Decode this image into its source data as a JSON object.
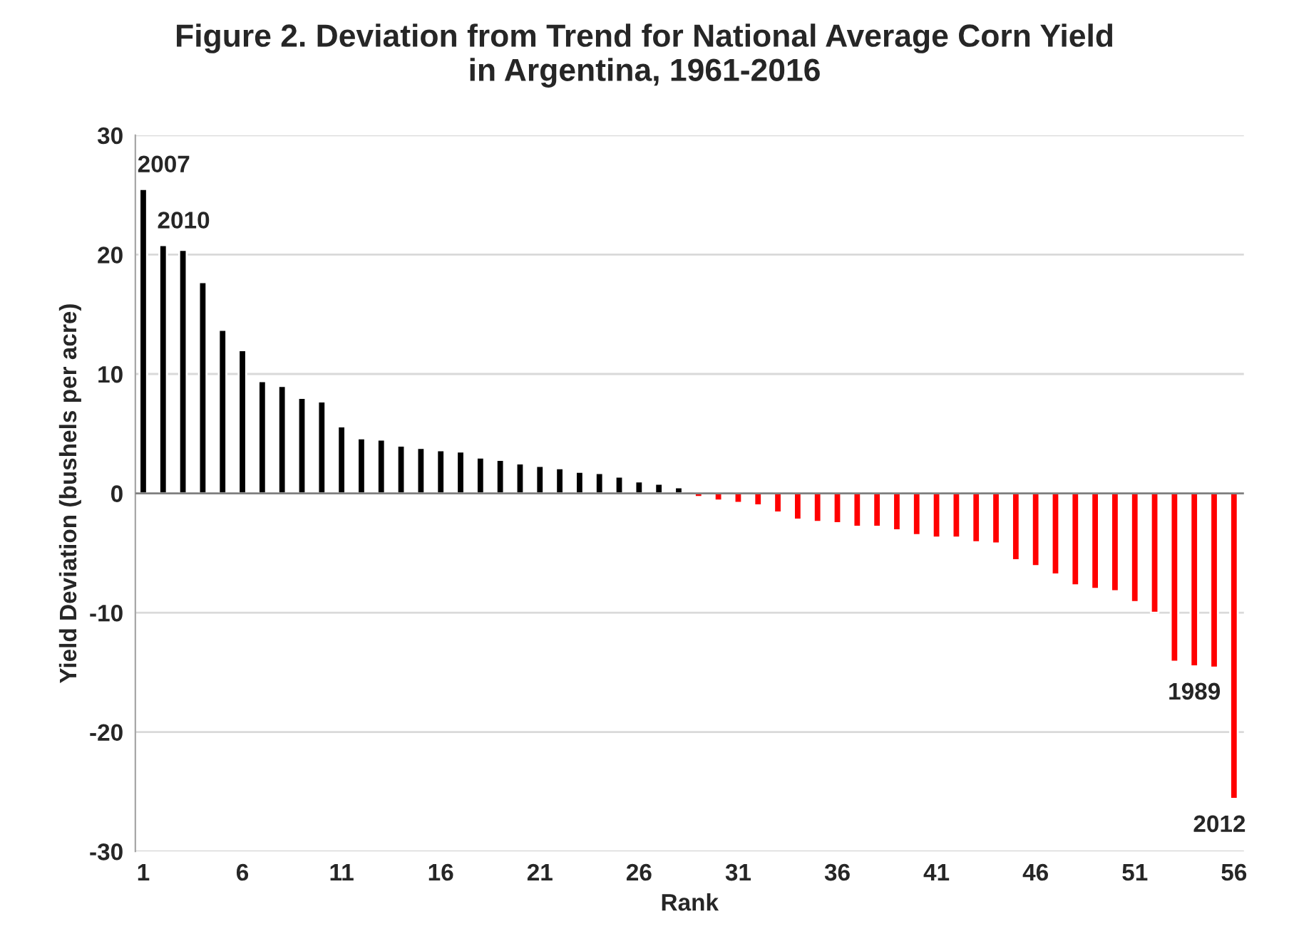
{
  "chart_data": {
    "type": "bar",
    "title": "Figure 2. Deviation from Trend for National Average Corn Yield\nin Argentina, 1961-2016",
    "xlabel": "Rank",
    "ylabel": "Yield Deviation (bushels per acre)",
    "x": [
      1,
      2,
      3,
      4,
      5,
      6,
      7,
      8,
      9,
      10,
      11,
      12,
      13,
      14,
      15,
      16,
      17,
      18,
      19,
      20,
      21,
      22,
      23,
      24,
      25,
      26,
      27,
      28,
      29,
      30,
      31,
      32,
      33,
      34,
      35,
      36,
      37,
      38,
      39,
      40,
      41,
      42,
      43,
      44,
      45,
      46,
      47,
      48,
      49,
      50,
      51,
      52,
      53,
      54,
      55,
      56
    ],
    "values": [
      25.5,
      20.8,
      20.4,
      17.7,
      13.7,
      12.0,
      9.4,
      9.0,
      8.0,
      7.7,
      5.6,
      4.6,
      4.5,
      4.0,
      3.8,
      3.6,
      3.5,
      3.0,
      2.8,
      2.5,
      2.3,
      2.1,
      1.8,
      1.7,
      1.4,
      1.0,
      0.8,
      0.5,
      -0.3,
      -0.6,
      -0.8,
      -1.0,
      -1.6,
      -2.2,
      -2.4,
      -2.5,
      -2.8,
      -2.8,
      -3.1,
      -3.5,
      -3.7,
      -3.7,
      -4.1,
      -4.2,
      -5.6,
      -6.1,
      -6.8,
      -7.7,
      -8.0,
      -8.2,
      -9.1,
      -10.0,
      -14.1,
      -14.5,
      -14.6,
      -25.6
    ],
    "colors": [
      "#000000",
      "#000000",
      "#000000",
      "#000000",
      "#000000",
      "#000000",
      "#000000",
      "#000000",
      "#000000",
      "#000000",
      "#000000",
      "#000000",
      "#000000",
      "#000000",
      "#000000",
      "#000000",
      "#000000",
      "#000000",
      "#000000",
      "#000000",
      "#000000",
      "#000000",
      "#000000",
      "#000000",
      "#000000",
      "#000000",
      "#000000",
      "#000000",
      "#ff0000",
      "#ff0000",
      "#ff0000",
      "#ff0000",
      "#ff0000",
      "#ff0000",
      "#ff0000",
      "#ff0000",
      "#ff0000",
      "#ff0000",
      "#ff0000",
      "#ff0000",
      "#ff0000",
      "#ff0000",
      "#ff0000",
      "#ff0000",
      "#ff0000",
      "#ff0000",
      "#ff0000",
      "#ff0000",
      "#ff0000",
      "#ff0000",
      "#ff0000",
      "#ff0000",
      "#ff0000",
      "#ff0000",
      "#ff0000",
      "#ff0000"
    ],
    "xlim": [
      0.6,
      56.5
    ],
    "xticks": [
      1,
      6,
      11,
      16,
      21,
      26,
      31,
      36,
      41,
      46,
      51,
      56
    ],
    "ylim": [
      -30,
      30
    ],
    "yticks": [
      -30,
      -20,
      -10,
      0,
      10,
      20,
      30
    ],
    "grid": "y",
    "annotations": [
      {
        "text": "2007",
        "x": 1,
        "y": 25.5
      },
      {
        "text": "2010",
        "x": 2,
        "y": 20.8
      },
      {
        "text": "1989",
        "x": 54,
        "y": -14.5
      },
      {
        "text": "2012",
        "x": 56,
        "y": -25.6
      }
    ]
  }
}
